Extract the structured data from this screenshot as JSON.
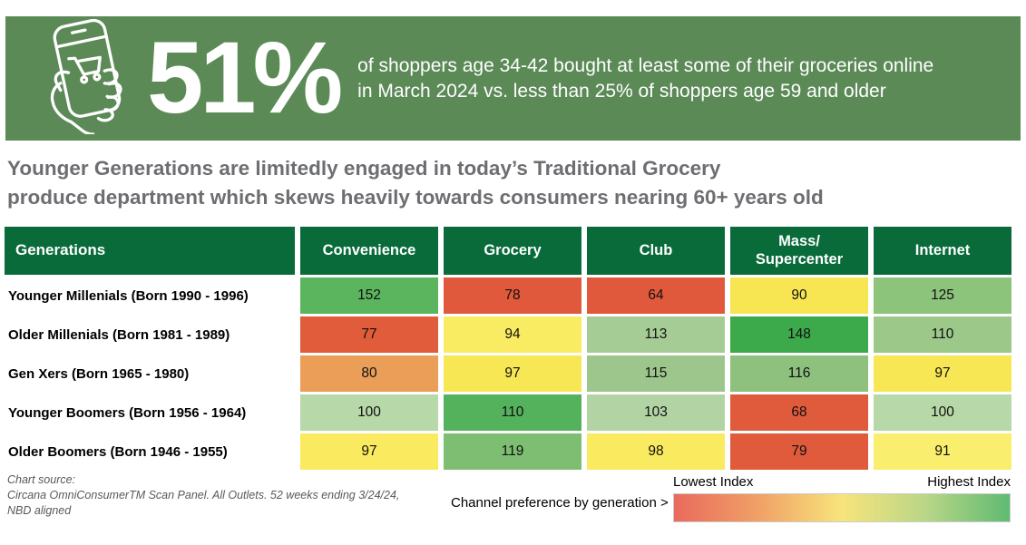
{
  "banner": {
    "stat": "51%",
    "description": "of shoppers age 34-42 bought at least some of their groceries online\nin March 2024 vs. less than 25% of shoppers age 59 and older",
    "bg_color": "#5b8a57",
    "icon": "phone-shopping-icon"
  },
  "headline": {
    "text": "Younger Generations are limitedly engaged in today’s Traditional Grocery\nproduce department which skews heavily towards consumers nearing 60+ years old",
    "color": "#6d6e71"
  },
  "chart_data": {
    "type": "heatmap",
    "row_header": "Generations",
    "columns": [
      "Convenience",
      "Grocery",
      "Club",
      "Mass/\nSupercenter",
      "Internet"
    ],
    "rows": [
      {
        "label": "Younger Millenials (Born 1990 - 1996)",
        "values": [
          152,
          78,
          64,
          90,
          125
        ],
        "colors": [
          "#5bb55e",
          "#e0593c",
          "#e0593c",
          "#f8e552",
          "#8cc47c"
        ]
      },
      {
        "label": "Older Millenials (Born 1981 - 1989)",
        "values": [
          77,
          94,
          113,
          148,
          110
        ],
        "colors": [
          "#e15c3a",
          "#f9ec62",
          "#a6cc96",
          "#3ca94a",
          "#9cc98a"
        ]
      },
      {
        "label": "Gen Xers (Born 1965 - 1980)",
        "values": [
          80,
          97,
          115,
          116,
          97
        ],
        "colors": [
          "#eb9e58",
          "#f8e754",
          "#9cc68c",
          "#8ec07e",
          "#f8e754"
        ]
      },
      {
        "label": "Younger Boomers (Born 1956 - 1964)",
        "values": [
          100,
          110,
          103,
          68,
          100
        ],
        "colors": [
          "#b7d8a8",
          "#55b25c",
          "#b2d4a4",
          "#df5b3b",
          "#b7d8a8"
        ]
      },
      {
        "label": "Older Boomers (Born 1946 - 1955)",
        "values": [
          97,
          119,
          98,
          79,
          91
        ],
        "colors": [
          "#f9ea60",
          "#7ebe72",
          "#f9ea60",
          "#df5b3b",
          "#f9ee6e"
        ]
      }
    ],
    "header_bg": "#096b3a",
    "legend": {
      "low_label": "Lowest Index",
      "high_label": "Highest Index",
      "gradient": [
        "#e96a5c",
        "#f0a066",
        "#f8e47b",
        "#b9d687",
        "#5fbb72"
      ]
    }
  },
  "footer": {
    "source_label": "Chart source:",
    "source_text": "Circana OmniConsumerTM Scan Panel. All Outlets. 52 weeks ending 3/24/24,\nNBD aligned",
    "note": "Channel preference by generation >"
  }
}
